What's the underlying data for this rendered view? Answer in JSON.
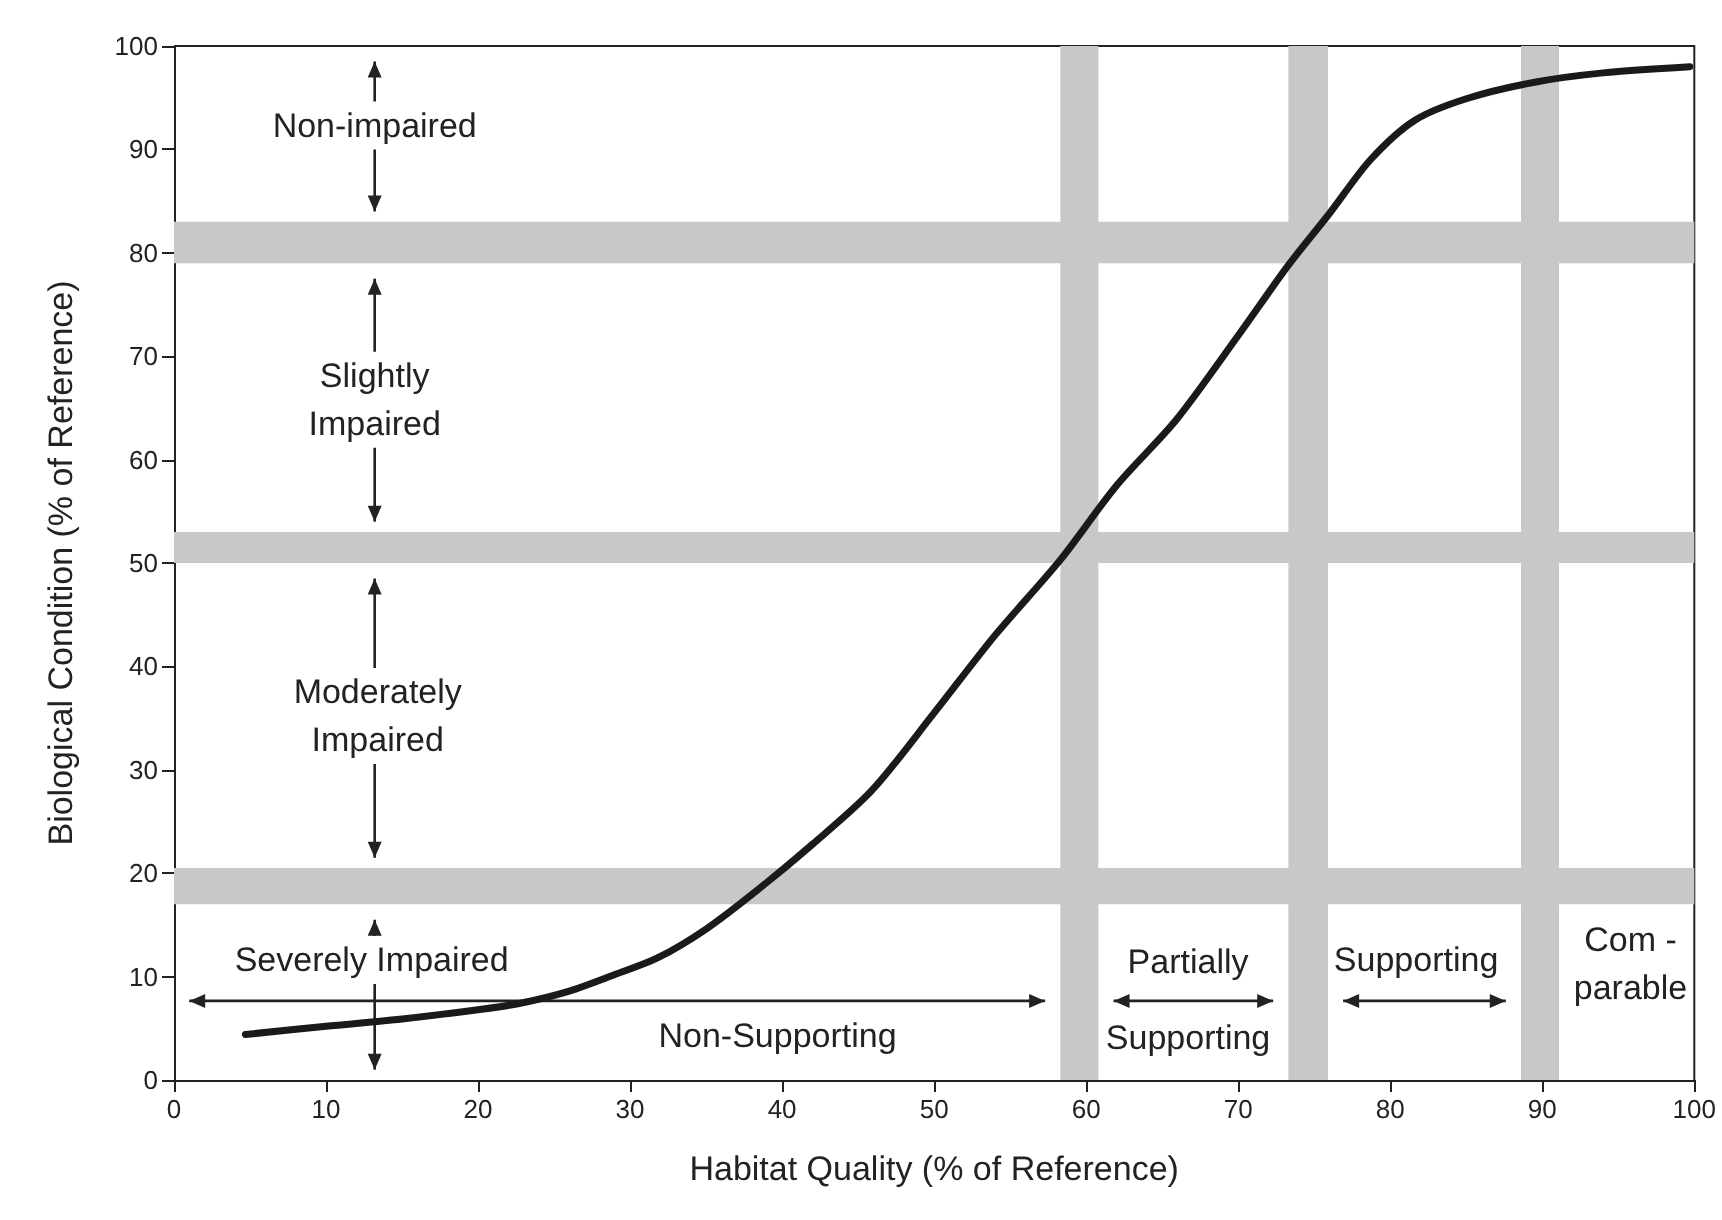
{
  "chart_data": {
    "type": "line",
    "xlabel": "Habitat Quality (% of Reference)",
    "ylabel": "Biological Condition (% of Reference)",
    "x": [
      4.7,
      10,
      15,
      20,
      22.7,
      26,
      29,
      31.8,
      35,
      38.4,
      42,
      45.9,
      50,
      54,
      58.3,
      62,
      65.9,
      70,
      73.3,
      76,
      78.7,
      81.6,
      85,
      89.5,
      94,
      99.7
    ],
    "series": [
      {
        "color": "#1a1a1a",
        "values": [
          4.4,
          5.2,
          5.9,
          6.8,
          7.4,
          8.6,
          10.2,
          11.8,
          14.6,
          18.4,
          22.8,
          28,
          35.5,
          43,
          50.3,
          57.5,
          63.8,
          72,
          78.8,
          83.8,
          89,
          92.8,
          94.9,
          96.5,
          97.4,
          98
        ]
      }
    ],
    "xlim": [
      0,
      100
    ],
    "ylim": [
      0,
      100
    ],
    "xticks": [
      0,
      10,
      20,
      30,
      40,
      50,
      60,
      70,
      80,
      90,
      100
    ],
    "yticks": [
      0,
      10,
      20,
      30,
      40,
      50,
      60,
      70,
      80,
      90,
      100
    ],
    "grid": false,
    "marker": "none",
    "line_style": "solid",
    "bands": [
      {
        "axis": "y",
        "from": 79,
        "to": 83,
        "color": "#c8c8c8"
      },
      {
        "axis": "y",
        "from": 50,
        "to": 53,
        "color": "#c8c8c8"
      },
      {
        "axis": "y",
        "from": 17,
        "to": 20.5,
        "color": "#c8c8c8"
      },
      {
        "axis": "x",
        "from": 58.3,
        "to": 60.8,
        "color": "#c8c8c8"
      },
      {
        "axis": "x",
        "from": 73.3,
        "to": 75.9,
        "color": "#c8c8c8"
      },
      {
        "axis": "x",
        "from": 88.6,
        "to": 91.1,
        "color": "#c8c8c8"
      }
    ],
    "annotations": [
      "Non-impaired",
      "Slightly\nImpaired",
      "Moderately\nImpaired",
      "Severely Impaired",
      "Non-Supporting",
      "Partially",
      "Supporting",
      "Supporting",
      "Com -\nparable"
    ]
  }
}
